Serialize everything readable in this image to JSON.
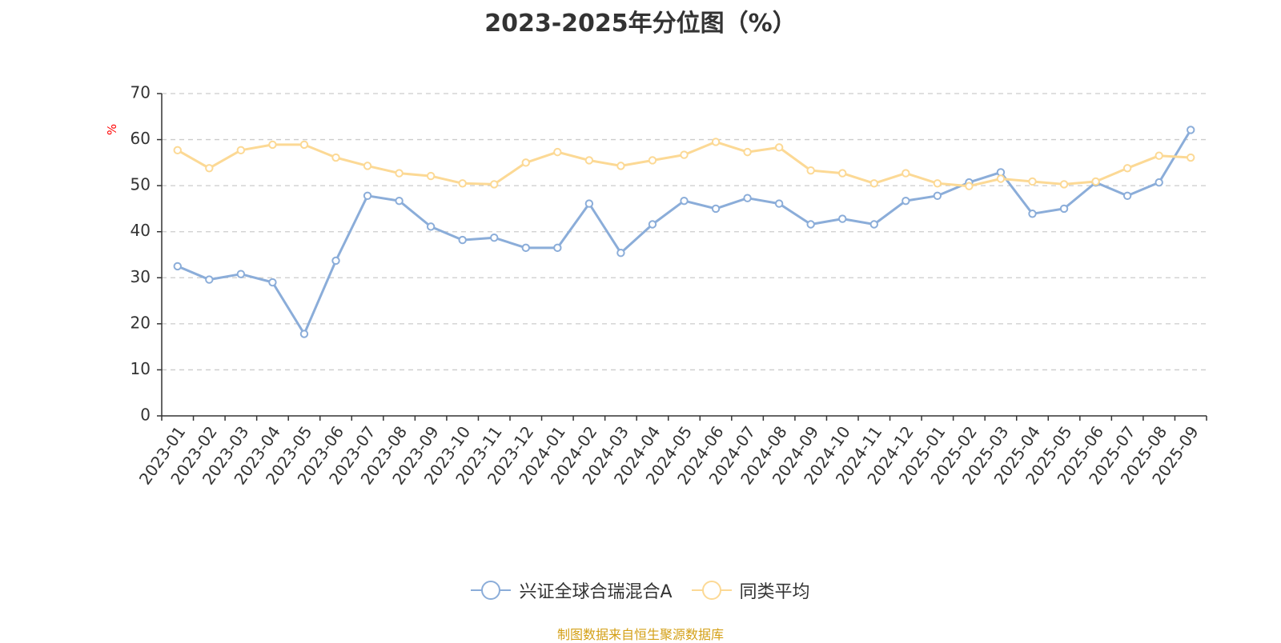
{
  "title": "2023-2025年分位图（%）",
  "source_note": "制图数据来自恒生聚源数据库",
  "colors": {
    "series_1": "#8badd9",
    "series_2": "#fcd995",
    "axis": "#333333",
    "grid": "#cccccc",
    "unit": "#ff0000",
    "source": "#d4a017"
  },
  "chart_data": {
    "type": "line",
    "title": "2023-2025年分位图（%）",
    "ylabel": "%",
    "xlabel": "",
    "ylim": [
      0,
      70
    ],
    "yticks": [
      0,
      10,
      20,
      30,
      40,
      50,
      60,
      70
    ],
    "grid": true,
    "legend_position": "bottom",
    "categories": [
      "2023-01",
      "2023-02",
      "2023-03",
      "2023-04",
      "2023-05",
      "2023-06",
      "2023-07",
      "2023-08",
      "2023-09",
      "2023-10",
      "2023-11",
      "2023-12",
      "2024-01",
      "2024-02",
      "2024-03",
      "2024-04",
      "2024-05",
      "2024-06",
      "2024-07",
      "2024-08",
      "2024-09",
      "2024-10",
      "2024-11",
      "2024-12",
      "2025-01",
      "2025-02",
      "2025-03",
      "2025-04",
      "2025-05",
      "2025-06",
      "2025-07",
      "2025-08",
      "2025-09"
    ],
    "series": [
      {
        "name": "兴证全球合瑞混合A",
        "color": "#8badd9",
        "values": [
          32.5,
          29.6,
          30.8,
          29.0,
          17.8,
          33.7,
          47.8,
          46.7,
          41.1,
          38.2,
          38.7,
          36.5,
          36.5,
          46.1,
          35.4,
          41.6,
          46.7,
          45.0,
          47.3,
          46.1,
          41.6,
          42.8,
          41.6,
          46.7,
          47.8,
          50.7,
          52.9,
          43.9,
          45.0,
          50.7,
          47.8,
          50.7,
          62.1
        ]
      },
      {
        "name": "同类平均",
        "color": "#fcd995",
        "values": [
          57.7,
          53.8,
          57.7,
          58.9,
          58.9,
          56.1,
          54.3,
          52.7,
          52.1,
          50.5,
          50.3,
          55.0,
          57.3,
          55.5,
          54.3,
          55.5,
          56.7,
          59.5,
          57.3,
          58.3,
          53.3,
          52.7,
          50.5,
          52.7,
          50.5,
          49.9,
          51.5,
          50.9,
          50.3,
          50.9,
          53.8,
          56.5,
          56.1
        ]
      }
    ]
  }
}
